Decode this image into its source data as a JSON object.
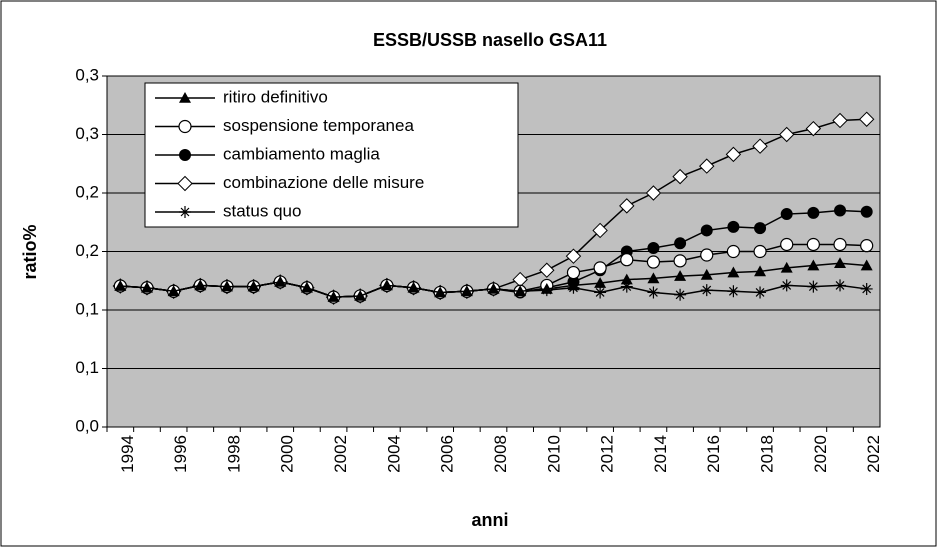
{
  "chart_data": {
    "type": "line",
    "title": "ESSB/USSB nasello GSA11",
    "xlabel": "anni",
    "ylabel": "ratio%",
    "categories": [
      "1994",
      null,
      "1996",
      null,
      "1998",
      null,
      "2000",
      null,
      "2002",
      null,
      "2004",
      null,
      "2006",
      null,
      "2008",
      null,
      "2010",
      null,
      "2012",
      null,
      "2014",
      null,
      "2016",
      null,
      "2018",
      null,
      "2020",
      null,
      "2022"
    ],
    "series": [
      {
        "name": "ritiro definitivo",
        "color": "#000000",
        "marker": "triangle",
        "values": [
          0.1205,
          0.119,
          0.116,
          0.121,
          0.12,
          0.12,
          0.124,
          0.119,
          0.111,
          0.112,
          0.121,
          0.119,
          0.115,
          0.116,
          0.118,
          0.116,
          0.118,
          0.121,
          0.123,
          0.126,
          0.127,
          0.129,
          0.13,
          0.132,
          0.133,
          0.136,
          0.138,
          0.14,
          0.138
        ]
      },
      {
        "name": "sospensione temporanea",
        "color": "#000000",
        "marker": "open-circle",
        "values": [
          0.1205,
          0.119,
          0.116,
          0.121,
          0.12,
          0.12,
          0.124,
          0.119,
          0.111,
          0.112,
          0.121,
          0.119,
          0.115,
          0.116,
          0.118,
          0.116,
          0.121,
          0.132,
          0.136,
          0.143,
          0.141,
          0.142,
          0.147,
          0.15,
          0.15,
          0.156,
          0.156,
          0.156,
          0.155
        ]
      },
      {
        "name": "cambiamento maglia",
        "color": "#000000",
        "marker": "filled-circle",
        "values": [
          0.1205,
          0.119,
          0.116,
          0.121,
          0.12,
          0.12,
          0.124,
          0.119,
          0.111,
          0.112,
          0.121,
          0.119,
          0.115,
          0.116,
          0.118,
          0.115,
          0.119,
          0.124,
          0.134,
          0.15,
          0.153,
          0.157,
          0.168,
          0.171,
          0.17,
          0.182,
          0.183,
          0.185,
          0.184
        ]
      },
      {
        "name": "combinazione delle misure",
        "color": "#000000",
        "marker": "diamond",
        "values": [
          0.1205,
          0.119,
          0.116,
          0.121,
          0.12,
          0.12,
          0.124,
          0.119,
          0.111,
          0.112,
          0.121,
          0.119,
          0.115,
          0.116,
          0.118,
          0.126,
          0.134,
          0.146,
          0.168,
          0.189,
          0.2,
          0.214,
          0.223,
          0.233,
          0.24,
          0.25,
          0.255,
          0.262,
          0.263
        ]
      },
      {
        "name": "status quo",
        "color": "#000000",
        "marker": "asterisk",
        "values": [
          0.1205,
          0.119,
          0.116,
          0.121,
          0.12,
          0.12,
          0.124,
          0.119,
          0.111,
          0.112,
          0.121,
          0.119,
          0.115,
          0.116,
          0.118,
          0.116,
          0.117,
          0.119,
          0.115,
          0.12,
          0.115,
          0.113,
          0.117,
          0.116,
          0.115,
          0.121,
          0.12,
          0.121,
          0.118
        ]
      }
    ],
    "ylim": [
      0,
      0.3
    ],
    "yticks": [
      {
        "value": 0,
        "label": "0,0"
      },
      {
        "value": 0.05,
        "label": "0,1"
      },
      {
        "value": 0.1,
        "label": "0,1"
      },
      {
        "value": 0.15,
        "label": "0,2"
      },
      {
        "value": 0.2,
        "label": "0,2"
      },
      {
        "value": 0.25,
        "label": "0,3"
      },
      {
        "value": 0.3,
        "label": "0,3"
      }
    ],
    "grid": true,
    "legend": "upper left",
    "plot_background": "#c0c0c0"
  }
}
